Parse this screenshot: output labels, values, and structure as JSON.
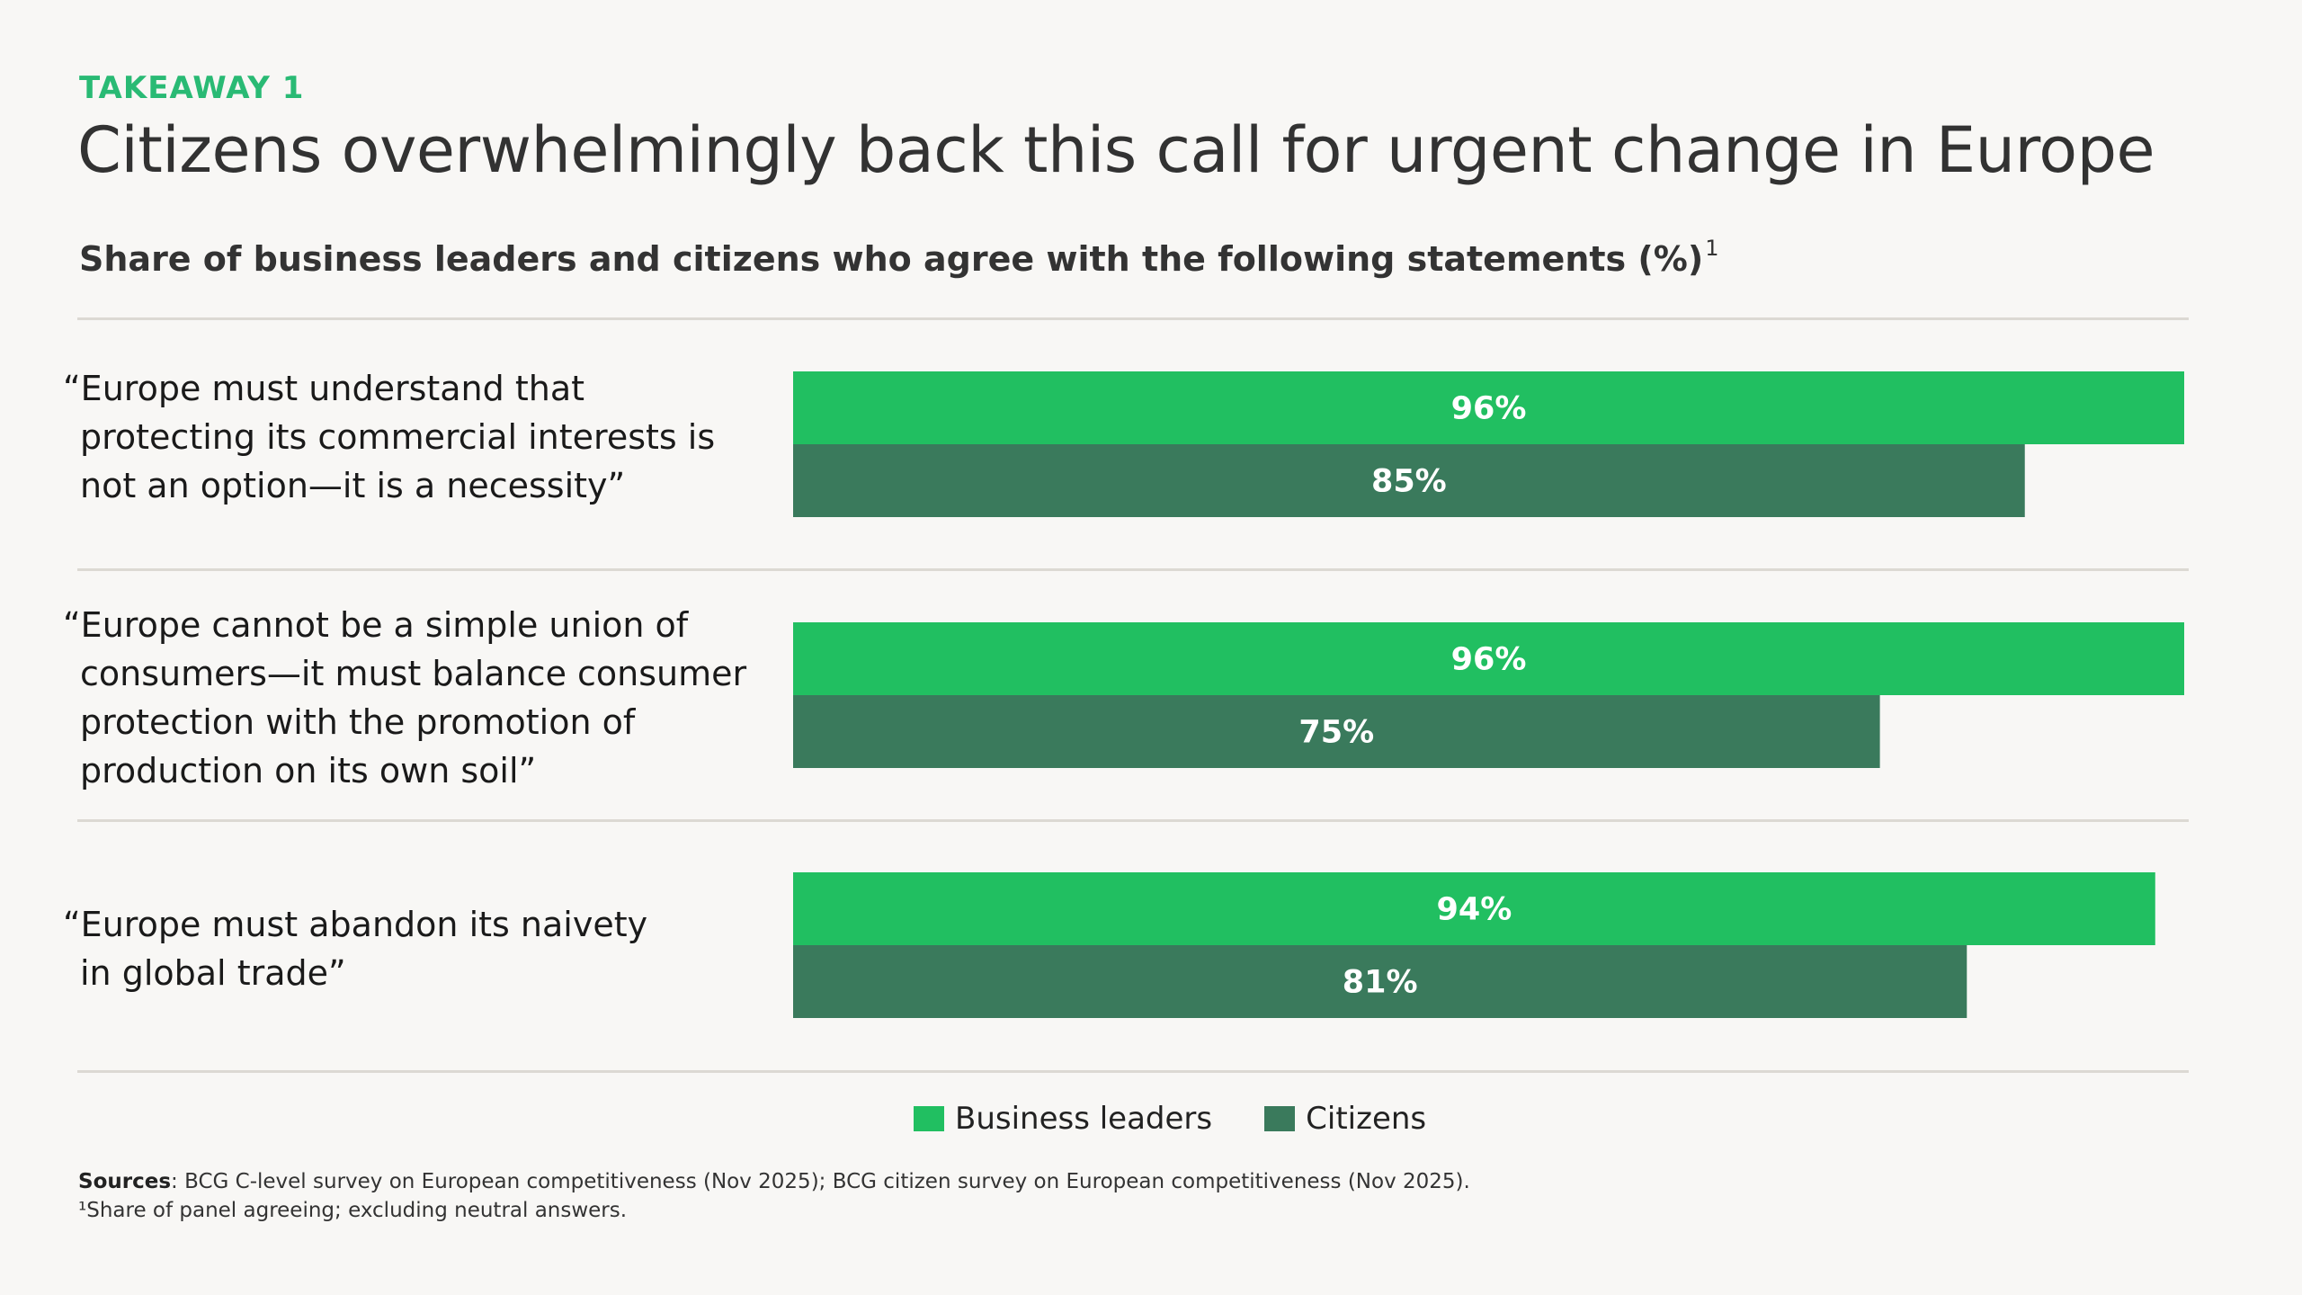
{
  "header": {
    "kicker": "TAKEAWAY 1",
    "title": "Citizens overwhelmingly back this call for urgent change in Europe",
    "subtitle": "Share of business leaders and citizens who agree with the following statements (%)",
    "subtitle_footnote_mark": "1"
  },
  "statements": [
    {
      "lines": [
        "“Europe must understand that",
        "protecting its commercial interests is",
        "not an option—it is a necessity”"
      ]
    },
    {
      "lines": [
        "“Europe cannot be a simple union of",
        "consumers—it must balance consumer",
        "protection with the promotion of",
        "production on its own soil”"
      ]
    },
    {
      "lines": [
        "“Europe must abandon its naivety",
        "in global trade”"
      ]
    }
  ],
  "chart_data": {
    "type": "bar",
    "orientation": "horizontal",
    "title": "Share of business leaders and citizens who agree with the following statements (%)",
    "categories": [
      "“Europe must understand that protecting its commercial interests is not an option—it is a necessity”",
      "“Europe cannot be a simple union of consumers—it must balance consumer protection with the promotion of production on its own soil”",
      "“Europe must abandon its naivety in global trade”"
    ],
    "series": [
      {
        "name": "Business leaders",
        "values": [
          96,
          96,
          94
        ],
        "labels": [
          "96%",
          "96%",
          "94%"
        ],
        "color": "#21bf61"
      },
      {
        "name": "Citizens",
        "values": [
          85,
          75,
          81
        ],
        "labels": [
          "85%",
          "75%",
          "81%"
        ],
        "color": "#3a7a5c"
      }
    ],
    "xlim": [
      0,
      96
    ],
    "unit": "%",
    "grid": false,
    "legend_position": "bottom-center"
  },
  "legend": {
    "items": [
      {
        "label": "Business leaders",
        "color": "#21bf61"
      },
      {
        "label": "Citizens",
        "color": "#3a7a5c"
      }
    ]
  },
  "footer": {
    "sources_label": "Sources",
    "sources_text": ": BCG C-level survey on European competitiveness (Nov 2025); BCG citizen survey on European competitiveness (Nov 2025).",
    "footnote": "¹Share of panel agreeing; excluding neutral answers."
  },
  "colors": {
    "accent": "#29ba74",
    "business_leaders": "#21bf61",
    "citizens": "#3a7a5c",
    "background": "#f8f7f5",
    "divider": "#dcd9d3"
  }
}
